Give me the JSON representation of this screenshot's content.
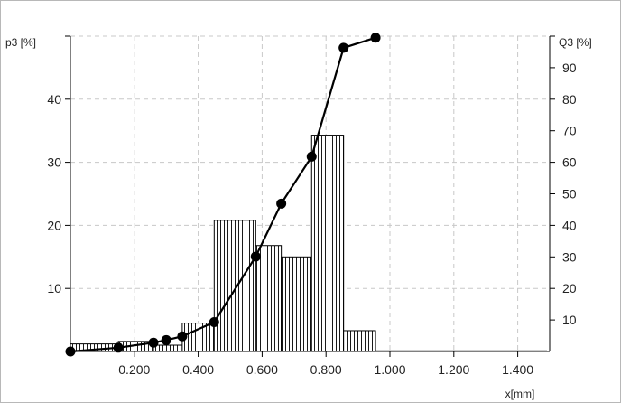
{
  "chart_data": {
    "type": "bar",
    "title": "",
    "xlabel": "x[mm]",
    "ylabel_left": "p3 [%]",
    "ylabel_right": "Q3 [%]",
    "xlim": [
      0,
      1.5
    ],
    "ylim_left": [
      0,
      50
    ],
    "ylim_right": [
      0,
      100
    ],
    "grid": true,
    "x_ticks": [
      0.2,
      0.4,
      0.6,
      0.8,
      1.0,
      1.2,
      1.4
    ],
    "x_tick_labels": [
      "0.200",
      "0.400",
      "0.600",
      "0.800",
      "1.000",
      "1.200",
      "1.400"
    ],
    "y_left_ticks": [
      10,
      20,
      30,
      40
    ],
    "y_left_tick_labels": [
      "10",
      "20",
      "30",
      "40"
    ],
    "y_right_ticks": [
      10,
      20,
      30,
      40,
      50,
      60,
      70,
      80,
      90
    ],
    "y_right_tick_labels": [
      "10",
      "20",
      "30",
      "40",
      "50",
      "60",
      "70",
      "80",
      "90"
    ],
    "histogram": {
      "axis": "left",
      "bins": [
        {
          "x0": 0.0,
          "x1": 0.15,
          "value": 1.2
        },
        {
          "x0": 0.15,
          "x1": 0.26,
          "value": 1.6
        },
        {
          "x0": 0.26,
          "x1": 0.35,
          "value": 1.0
        },
        {
          "x0": 0.35,
          "x1": 0.45,
          "value": 4.5
        },
        {
          "x0": 0.45,
          "x1": 0.58,
          "value": 20.8
        },
        {
          "x0": 0.58,
          "x1": 0.66,
          "value": 16.8
        },
        {
          "x0": 0.66,
          "x1": 0.755,
          "value": 15.0
        },
        {
          "x0": 0.755,
          "x1": 0.855,
          "value": 34.3
        },
        {
          "x0": 0.855,
          "x1": 0.955,
          "value": 3.3
        },
        {
          "x0": 0.955,
          "x1": 1.49,
          "value": 0.1
        }
      ]
    },
    "cumulative": {
      "axis": "right",
      "x": [
        0.0,
        0.15,
        0.26,
        0.3,
        0.35,
        0.45,
        0.58,
        0.66,
        0.755,
        0.855,
        0.955
      ],
      "y": [
        0.0,
        1.2,
        2.8,
        3.6,
        4.8,
        9.3,
        30.1,
        46.9,
        61.8,
        96.3,
        99.5
      ]
    }
  }
}
